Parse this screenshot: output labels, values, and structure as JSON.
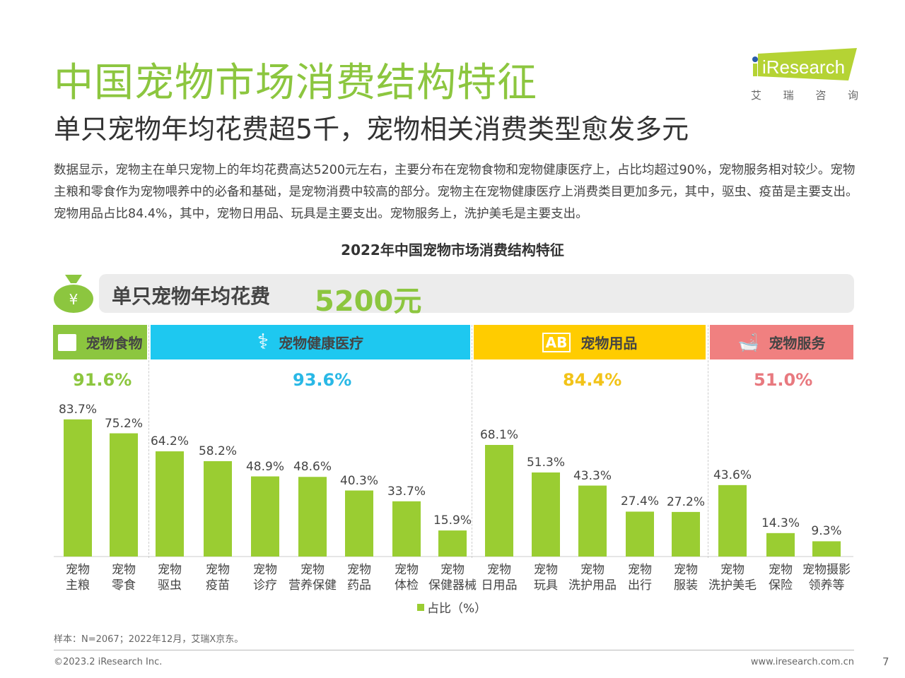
{
  "header": {
    "title": "中国宠物市场消费结构特征",
    "subtitle": "单只宠物年均花费超5千，宠物相关消费类型愈发多元",
    "logo_text": "iResearch",
    "logo_cn": [
      "艾",
      "瑞",
      "咨",
      "询"
    ]
  },
  "description": "数据显示，宠物主在单只宠物上的年均花费高达5200元左右，主要分布在宠物食物和宠物健康医疗上，占比均超过90%，宠物服务相对较少。宠物主粮和零食作为宠物喂养中的必备和基础，是宠物消费中较高的部分。宠物主在宠物健康医疗上消费类目更加多元，其中，驱虫、疫苗是主要支出。宠物用品占比84.4%，其中，宠物日用品、玩具是主要支出。宠物服务上，洗护美毛是主要支出。",
  "annual": {
    "label": "单只宠物年均花费",
    "value": "5200元",
    "icon": "money-bag-icon"
  },
  "categories": [
    {
      "name": "宠物食物",
      "pct": "91.6%",
      "color": "#8cc63f",
      "text_color": "#8cc63f",
      "icon": "pet-food-icon"
    },
    {
      "name": "宠物健康医疗",
      "pct": "93.6%",
      "color": "#1ec8f0",
      "text_color": "#29b8e6",
      "icon": "stethoscope-icon"
    },
    {
      "name": "宠物用品",
      "pct": "84.4%",
      "color": "#ffcc00",
      "text_color": "#f2c318",
      "icon": "ab-block-icon"
    },
    {
      "name": "宠物服务",
      "pct": "51.0%",
      "color": "#f08080",
      "text_color": "#e8797f",
      "icon": "pet-bath-icon"
    }
  ],
  "chart_data": {
    "type": "bar",
    "title": "2022年中国宠物市场消费结构特征",
    "categories": [
      "宠物\n主粮",
      "宠物\n零食",
      "宠物\n驱虫",
      "宠物\n疫苗",
      "宠物\n诊疗",
      "宠物\n营养保健",
      "宠物\n药品",
      "宠物\n体检",
      "宠物\n保健器械",
      "宠物\n日用品",
      "宠物\n玩具",
      "宠物\n洗护用品",
      "宠物\n出行",
      "宠物\n服装",
      "宠物\n洗护美毛",
      "宠物\n保险",
      "宠物摄影\n领养等"
    ],
    "series": [
      {
        "name": "占比（%）",
        "values": [
          83.7,
          75.2,
          64.2,
          58.2,
          48.9,
          48.6,
          40.3,
          33.7,
          15.9,
          68.1,
          51.3,
          43.3,
          27.4,
          27.2,
          43.6,
          14.3,
          9.3
        ],
        "color": "#9acd32"
      }
    ],
    "data_labels": [
      "83.7%",
      "75.2%",
      "64.2%",
      "58.2%",
      "48.9%",
      "48.6%",
      "40.3%",
      "33.7%",
      "15.9%",
      "68.1%",
      "51.3%",
      "43.3%",
      "27.4%",
      "27.2%",
      "43.6%",
      "14.3%",
      "9.3%"
    ],
    "legend": "bottom",
    "grid": false,
    "ylim": [
      0,
      100
    ]
  },
  "footer": {
    "note": "样本：N=2067；2022年12月，艾瑞X京东。",
    "copyright": "©2023.2 iResearch Inc.",
    "url": "www.iresearch.com.cn",
    "page": "7"
  }
}
